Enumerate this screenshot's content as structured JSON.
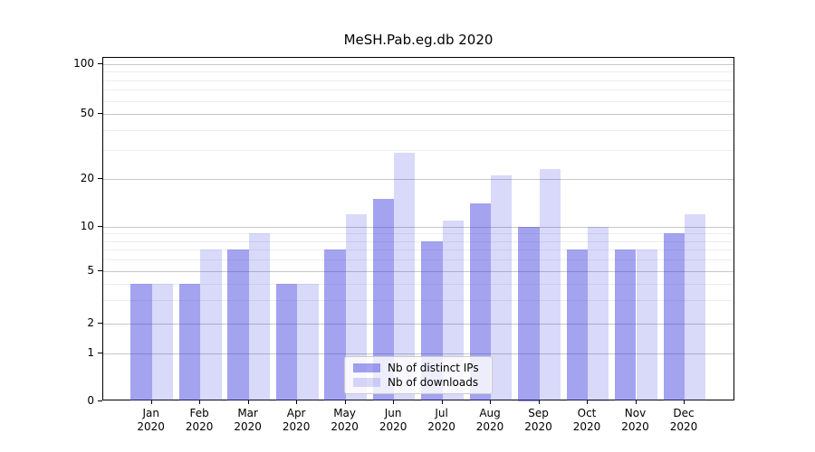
{
  "chart_data": {
    "type": "bar",
    "title": "MeSH.Pab.eg.db 2020",
    "categories": [
      "Jan 2020",
      "Feb 2020",
      "Mar 2020",
      "Apr 2020",
      "May 2020",
      "Jun 2020",
      "Jul 2020",
      "Aug 2020",
      "Sep 2020",
      "Oct 2020",
      "Nov 2020",
      "Dec 2020"
    ],
    "months": [
      "Jan",
      "Feb",
      "Mar",
      "Apr",
      "May",
      "Jun",
      "Jul",
      "Aug",
      "Sep",
      "Oct",
      "Nov",
      "Dec"
    ],
    "year": "2020",
    "series": [
      {
        "name": "Nb of distinct IPs",
        "color": "rgba(50,50,222,0.45)",
        "values": [
          4,
          4,
          7,
          4,
          7,
          15,
          8,
          14,
          10,
          7,
          7,
          9
        ]
      },
      {
        "name": "Nb of downloads",
        "color": "rgba(50,50,222,0.185)",
        "values": [
          4,
          7,
          9,
          4,
          12,
          29,
          11,
          21,
          23,
          10,
          7,
          12
        ]
      }
    ],
    "y_axis": {
      "scale": "symlog-like",
      "ticks": [
        0,
        1,
        2,
        5,
        10,
        20,
        50,
        100
      ],
      "minor_gridlines": [
        3,
        4,
        6,
        7,
        8,
        9,
        30,
        40,
        60,
        70,
        80,
        90
      ],
      "ylim": [
        0,
        110
      ]
    },
    "x_axis": {
      "label": "",
      "tick_format": "month-over-year"
    },
    "legend": {
      "position": "lower center"
    },
    "grid": true,
    "colors": {
      "bar_dark": "#a3a3f0",
      "bar_light": "#d9d9f7",
      "major_grid": "#c7c7c7",
      "minor_grid": "#ededed",
      "spine": "#000000",
      "background": "#ffffff"
    }
  }
}
